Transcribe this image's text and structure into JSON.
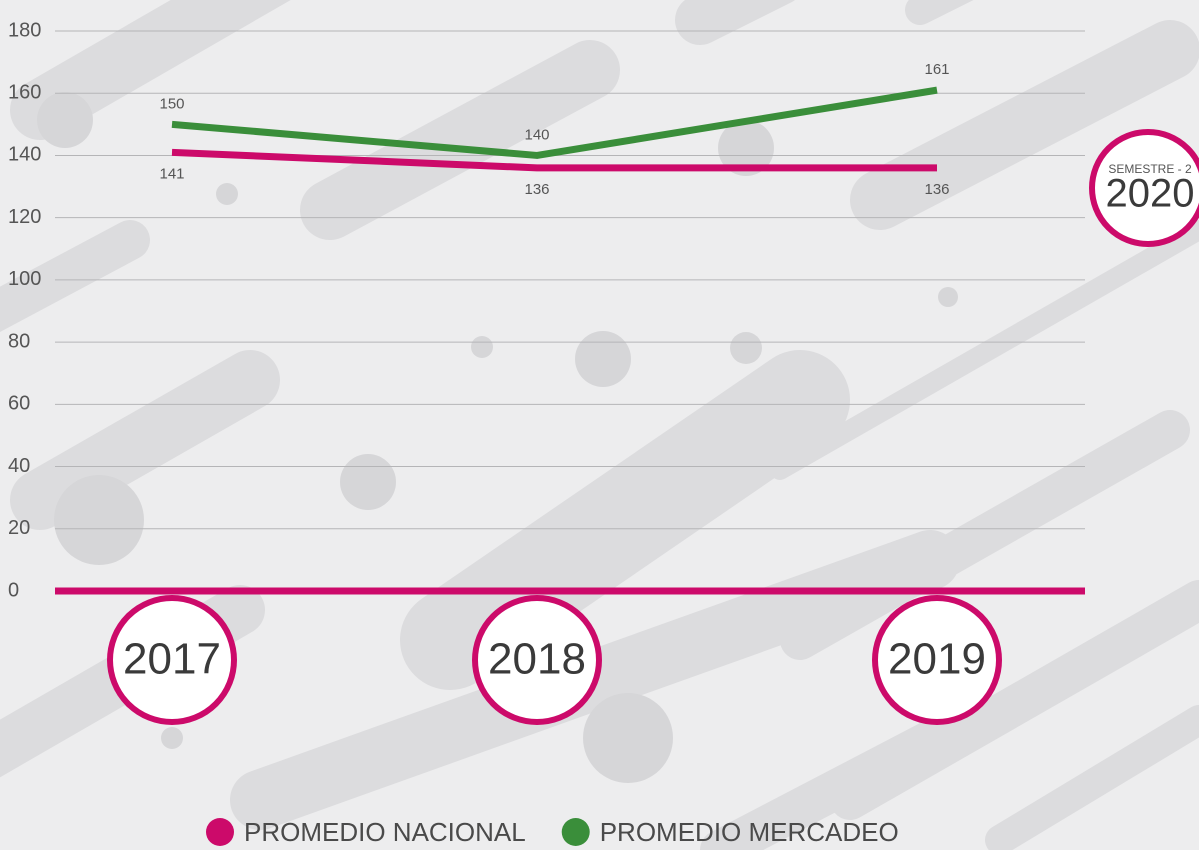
{
  "chart_data": {
    "type": "line",
    "categories": [
      "2017",
      "2018",
      "2019"
    ],
    "series": [
      {
        "name": "PROMEDIO NACIONAL",
        "color": "#cc0a6a",
        "values": [
          141,
          136,
          136
        ]
      },
      {
        "name": "PROMEDIO MERCADEO",
        "color": "#3a8e3a",
        "values": [
          150,
          140,
          161
        ]
      }
    ],
    "ylim": [
      0,
      180
    ],
    "yticks": [
      0,
      20,
      40,
      60,
      80,
      100,
      120,
      140,
      160,
      180
    ],
    "grid": true,
    "annotations": [
      "SEMESTRE - 2",
      "2020"
    ],
    "legend": "bottom"
  }
}
